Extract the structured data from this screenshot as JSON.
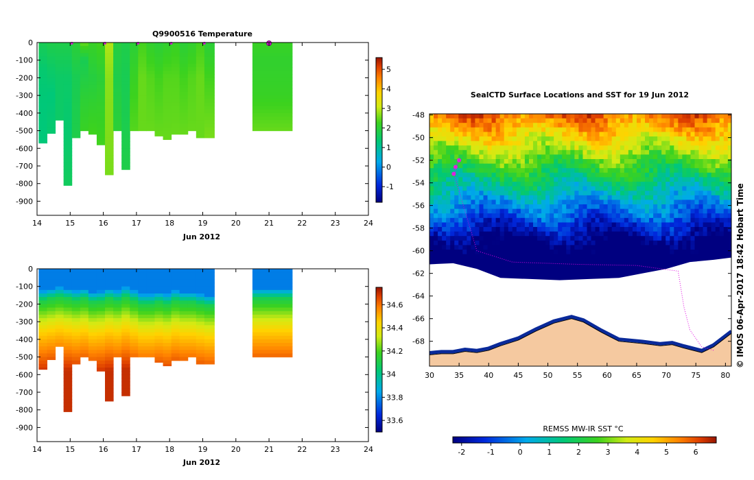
{
  "chart_data": [
    {
      "id": "temperature",
      "type": "heatmap",
      "title": "Q9900516  Temperature",
      "xlabel": "Jun 2012",
      "xlim": [
        14,
        24
      ],
      "ylim": [
        0,
        -980
      ],
      "xticks": [
        "14",
        "15",
        "16",
        "17",
        "18",
        "19",
        "20",
        "21",
        "22",
        "23",
        "24"
      ],
      "yticks": [
        "0",
        "-100",
        "-200",
        "-300",
        "-400",
        "-500",
        "-600",
        "-700",
        "-800",
        "-900"
      ],
      "colorbar": {
        "ticks": [
          "5",
          "4",
          "3",
          "2",
          "1",
          "0",
          "-1"
        ],
        "range": [
          -1.8,
          5.6
        ]
      },
      "surface_markers": [
        15.05,
        16.05,
        17.05,
        18.05,
        19.05,
        21.0
      ],
      "profiles": [
        {
          "t": 14.05,
          "w": 0.25,
          "d": 570,
          "ts": [
            [
              0,
              1.7
            ],
            [
              150,
              1.4
            ],
            [
              350,
              1.3
            ],
            [
              570,
              1.3
            ]
          ]
        },
        {
          "t": 14.3,
          "w": 0.25,
          "d": 515,
          "ts": [
            [
              0,
              1.8
            ],
            [
              150,
              1.5
            ],
            [
              300,
              1.3
            ],
            [
              515,
              1.4
            ]
          ]
        },
        {
          "t": 14.55,
          "w": 0.25,
          "d": 440,
          "ts": [
            [
              0,
              1.8
            ],
            [
              200,
              1.5
            ],
            [
              440,
              1.5
            ]
          ]
        },
        {
          "t": 14.8,
          "w": 0.25,
          "d": 810,
          "ts": [
            [
              0,
              1.8
            ],
            [
              200,
              1.5
            ],
            [
              500,
              1.4
            ],
            [
              810,
              1.6
            ]
          ]
        },
        {
          "t": 15.05,
          "w": 0.25,
          "d": 540,
          "ts": [
            [
              0,
              2.0
            ],
            [
              200,
              1.7
            ],
            [
              540,
              1.8
            ]
          ]
        },
        {
          "t": 15.3,
          "w": 0.25,
          "d": 500,
          "ts": [
            [
              0,
              2.5
            ],
            [
              100,
              1.7
            ],
            [
              300,
              2.0
            ],
            [
              500,
              2.2
            ]
          ]
        },
        {
          "t": 15.55,
          "w": 0.25,
          "d": 520,
          "ts": [
            [
              0,
              2.2
            ],
            [
              200,
              1.9
            ],
            [
              520,
              2.3
            ]
          ]
        },
        {
          "t": 15.8,
          "w": 0.25,
          "d": 580,
          "ts": [
            [
              0,
              2.3
            ],
            [
              200,
              2.0
            ],
            [
              580,
              2.3
            ]
          ]
        },
        {
          "t": 16.05,
          "w": 0.25,
          "d": 750,
          "ts": [
            [
              0,
              2.9
            ],
            [
              200,
              2.7
            ],
            [
              750,
              2.6
            ]
          ]
        },
        {
          "t": 16.3,
          "w": 0.25,
          "d": 500,
          "ts": [
            [
              0,
              1.9
            ],
            [
              200,
              1.8
            ],
            [
              500,
              2.0
            ]
          ]
        },
        {
          "t": 16.55,
          "w": 0.25,
          "d": 720,
          "ts": [
            [
              0,
              1.8
            ],
            [
              200,
              1.7
            ],
            [
              720,
              1.8
            ]
          ]
        },
        {
          "t": 16.8,
          "w": 0.25,
          "d": 500,
          "ts": [
            [
              0,
              2.0
            ],
            [
              200,
              2.2
            ],
            [
              500,
              2.4
            ]
          ]
        },
        {
          "t": 17.05,
          "w": 0.25,
          "d": 500,
          "ts": [
            [
              0,
              2.3
            ],
            [
              200,
              2.5
            ],
            [
              500,
              2.5
            ]
          ]
        },
        {
          "t": 17.3,
          "w": 0.25,
          "d": 500,
          "ts": [
            [
              0,
              2.1
            ],
            [
              200,
              2.4
            ],
            [
              500,
              2.5
            ]
          ]
        },
        {
          "t": 17.55,
          "w": 0.25,
          "d": 530,
          "ts": [
            [
              0,
              2.0
            ],
            [
              200,
              2.3
            ],
            [
              530,
              2.5
            ]
          ]
        },
        {
          "t": 17.8,
          "w": 0.25,
          "d": 550,
          "ts": [
            [
              0,
              2.1
            ],
            [
              200,
              2.4
            ],
            [
              550,
              2.5
            ]
          ]
        },
        {
          "t": 18.05,
          "w": 0.25,
          "d": 520,
          "ts": [
            [
              0,
              2.2
            ],
            [
              200,
              2.4
            ],
            [
              520,
              2.5
            ]
          ]
        },
        {
          "t": 18.3,
          "w": 0.25,
          "d": 520,
          "ts": [
            [
              0,
              2.0
            ],
            [
              200,
              2.3
            ],
            [
              520,
              2.5
            ]
          ]
        },
        {
          "t": 18.55,
          "w": 0.25,
          "d": 500,
          "ts": [
            [
              0,
              2.1
            ],
            [
              200,
              2.4
            ],
            [
              500,
              2.5
            ]
          ]
        },
        {
          "t": 18.8,
          "w": 0.25,
          "d": 540,
          "ts": [
            [
              0,
              2.3
            ],
            [
              200,
              2.5
            ],
            [
              540,
              2.5
            ]
          ]
        },
        {
          "t": 19.05,
          "w": 0.3,
          "d": 540,
          "ts": [
            [
              0,
              2.0
            ],
            [
              200,
              2.3
            ],
            [
              540,
              2.6
            ]
          ]
        },
        {
          "t": 20.5,
          "w": 1.2,
          "d": 500,
          "ts": [
            [
              0,
              2.2
            ],
            [
              100,
              2.1
            ],
            [
              300,
              2.2
            ],
            [
              500,
              2.5
            ]
          ]
        }
      ]
    },
    {
      "id": "salinity",
      "type": "heatmap",
      "title": "",
      "xlabel": "Jun 2012",
      "xlim": [
        14,
        24
      ],
      "ylim": [
        0,
        -980
      ],
      "xticks": [
        "14",
        "15",
        "16",
        "17",
        "18",
        "19",
        "20",
        "21",
        "22",
        "23",
        "24"
      ],
      "yticks": [
        "0",
        "-100",
        "-200",
        "-300",
        "-400",
        "-500",
        "-600",
        "-700",
        "-800",
        "-900"
      ],
      "colorbar": {
        "ticks": [
          "34.6",
          "34.4",
          "34.2",
          "34",
          "33.8",
          "33.6"
        ],
        "range": [
          33.5,
          34.75
        ]
      },
      "profiles": [
        {
          "t": 14.05,
          "w": 0.25,
          "d": 570,
          "hc": 160
        },
        {
          "t": 14.3,
          "w": 0.25,
          "d": 515,
          "hc": 150
        },
        {
          "t": 14.55,
          "w": 0.25,
          "d": 440,
          "hc": 140
        },
        {
          "t": 14.8,
          "w": 0.25,
          "d": 810,
          "hc": 150
        },
        {
          "t": 15.05,
          "w": 0.25,
          "d": 540,
          "hc": 160
        },
        {
          "t": 15.3,
          "w": 0.25,
          "d": 500,
          "hc": 150
        },
        {
          "t": 15.55,
          "w": 0.25,
          "d": 520,
          "hc": 170
        },
        {
          "t": 15.8,
          "w": 0.25,
          "d": 580,
          "hc": 165
        },
        {
          "t": 16.05,
          "w": 0.25,
          "d": 750,
          "hc": 150
        },
        {
          "t": 16.3,
          "w": 0.25,
          "d": 500,
          "hc": 160
        },
        {
          "t": 16.55,
          "w": 0.25,
          "d": 720,
          "hc": 140
        },
        {
          "t": 16.8,
          "w": 0.25,
          "d": 500,
          "hc": 160
        },
        {
          "t": 17.05,
          "w": 0.25,
          "d": 500,
          "hc": 180
        },
        {
          "t": 17.3,
          "w": 0.25,
          "d": 500,
          "hc": 180
        },
        {
          "t": 17.55,
          "w": 0.25,
          "d": 530,
          "hc": 170
        },
        {
          "t": 17.8,
          "w": 0.25,
          "d": 550,
          "hc": 180
        },
        {
          "t": 18.05,
          "w": 0.25,
          "d": 520,
          "hc": 160
        },
        {
          "t": 18.3,
          "w": 0.25,
          "d": 520,
          "hc": 170
        },
        {
          "t": 18.55,
          "w": 0.25,
          "d": 500,
          "hc": 170
        },
        {
          "t": 18.8,
          "w": 0.25,
          "d": 540,
          "hc": 180
        },
        {
          "t": 19.05,
          "w": 0.3,
          "d": 540,
          "hc": 190
        },
        {
          "t": 20.5,
          "w": 1.2,
          "d": 500,
          "hc": 150
        }
      ]
    },
    {
      "id": "sst-map",
      "type": "heatmap",
      "title": "SealCTD Surface Locations and SST for 19 Jun 2012",
      "xlim": [
        30,
        81
      ],
      "ylim": [
        -70.2,
        -47.9
      ],
      "xticks": [
        "30",
        "35",
        "40",
        "45",
        "50",
        "55",
        "60",
        "65",
        "70",
        "75",
        "80"
      ],
      "yticks": [
        "-48",
        "-50",
        "-52",
        "-54",
        "-56",
        "-58",
        "-60",
        "-62",
        "-64",
        "-66",
        "-68"
      ],
      "colorbar_label": "REMSS MW-IR SST °C",
      "colorbar": {
        "ticks": [
          "-2",
          "-1",
          "0",
          "1",
          "2",
          "3",
          "4",
          "5",
          "6"
        ],
        "range": [
          -2.3,
          6.7
        ]
      },
      "seal_track": [
        [
          34.0,
          -52.8
        ],
        [
          34.6,
          -52.4
        ],
        [
          35.0,
          -51.9
        ],
        [
          34.2,
          -53.3
        ],
        [
          36,
          -56.5
        ],
        [
          38,
          -60
        ],
        [
          44,
          -61
        ],
        [
          55,
          -61.2
        ],
        [
          65,
          -61.3
        ],
        [
          72,
          -61.8
        ],
        [
          73,
          -65
        ],
        [
          74,
          -67
        ],
        [
          76,
          -68.5
        ],
        [
          78,
          -68.8
        ]
      ],
      "seal_locations": [
        [
          34.4,
          -52.6
        ],
        [
          35.0,
          -52.0
        ],
        [
          34.1,
          -53.2
        ]
      ]
    }
  ],
  "credit": "© IMOS 06-Apr-2017 18:42 Hobart Time"
}
